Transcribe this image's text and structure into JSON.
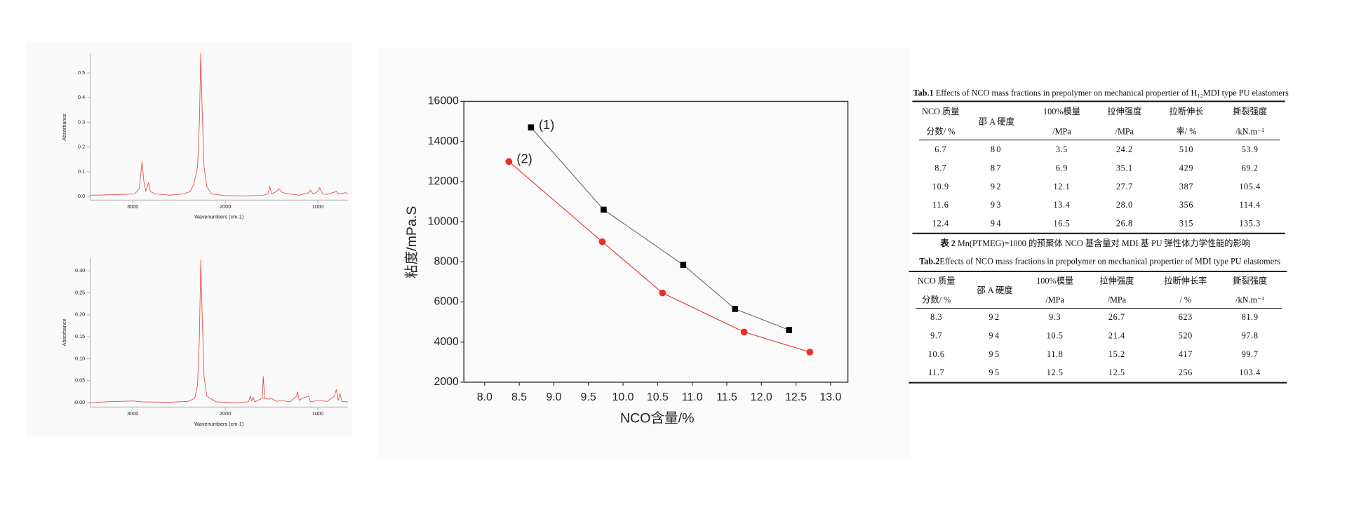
{
  "chart_data": [
    {
      "type": "line",
      "x_label": "Wavenumbers (cm-1)",
      "y_label": "Absorbance",
      "x": [
        3460,
        3300,
        3100,
        2980,
        2930,
        2900,
        2880,
        2860,
        2830,
        2810,
        2760,
        2600,
        2450,
        2380,
        2340,
        2300,
        2280,
        2265,
        2250,
        2230,
        2200,
        2150,
        2000,
        1800,
        1600,
        1540,
        1520,
        1500,
        1450,
        1420,
        1380,
        1300,
        1200,
        1100,
        1080,
        1050,
        1000,
        980,
        950,
        900,
        800,
        780,
        700,
        675
      ],
      "series": [
        {
          "color": "#e8473f",
          "values": [
            0.005,
            0.006,
            0.008,
            0.01,
            0.03,
            0.14,
            0.06,
            0.02,
            0.055,
            0.02,
            0.01,
            0.005,
            0.01,
            0.02,
            0.05,
            0.12,
            0.3,
            0.58,
            0.35,
            0.12,
            0.04,
            0.01,
            0.003,
            0.002,
            0.004,
            0.01,
            0.04,
            0.01,
            0.02,
            0.03,
            0.015,
            0.01,
            0.005,
            0.015,
            0.025,
            0.01,
            0.02,
            0.035,
            0.01,
            0.008,
            0.02,
            0.01,
            0.015,
            0.01
          ]
        }
      ],
      "xlim": [
        3460,
        675
      ],
      "xticks": [
        3000,
        2000,
        1000
      ],
      "ylim": [
        -0.015,
        0.58
      ],
      "yticks": [
        {
          "value": 0,
          "label": "-0.0"
        },
        0.1,
        0.2,
        0.3,
        0.4,
        0.5
      ]
    },
    {
      "type": "line",
      "x_label": "Wavenumbers (cm-1)",
      "y_label": "Absorbance",
      "x": [
        3460,
        3300,
        3000,
        2900,
        2600,
        2400,
        2330,
        2300,
        2280,
        2265,
        2250,
        2230,
        2200,
        2100,
        1900,
        1750,
        1730,
        1715,
        1700,
        1680,
        1600,
        1590,
        1575,
        1530,
        1500,
        1450,
        1400,
        1300,
        1230,
        1220,
        1200,
        1170,
        1100,
        1080,
        1000,
        900,
        820,
        800,
        780,
        760,
        740,
        675
      ],
      "series": [
        {
          "color": "#e8473f",
          "values": [
            0.0,
            0.002,
            0.004,
            0.002,
            0.001,
            0.003,
            0.01,
            0.04,
            0.15,
            0.325,
            0.2,
            0.06,
            0.015,
            0.002,
            0.0,
            0.002,
            0.015,
            0.004,
            0.012,
            0.002,
            0.01,
            0.06,
            0.01,
            0.008,
            0.01,
            0.003,
            0.005,
            0.002,
            0.015,
            0.025,
            0.005,
            0.01,
            0.015,
            0.002,
            0.005,
            0.003,
            0.015,
            0.03,
            0.005,
            0.02,
            0.003,
            0.002
          ]
        }
      ],
      "xlim": [
        3460,
        675
      ],
      "xticks": [
        3000,
        2000,
        1000
      ],
      "ylim": [
        -0.01,
        0.33
      ],
      "yticks": [
        {
          "value": 0,
          "label": "-0.00"
        },
        0.05,
        {
          "value": 0.1,
          "label": "0.10"
        },
        0.15,
        {
          "value": 0.2,
          "label": "0.20"
        },
        0.25,
        {
          "value": 0.3,
          "label": "0.30"
        }
      ]
    },
    {
      "type": "line",
      "x_label": "NCO含量/%",
      "y_label": "粘度/mPa.S",
      "series": [
        {
          "name": "(1)",
          "color": "#000000",
          "line_color": "#666666",
          "marker": "square",
          "x": [
            8.67,
            9.72,
            10.87,
            11.62,
            12.4
          ],
          "values": [
            14700,
            10600,
            7850,
            5650,
            4600
          ]
        },
        {
          "name": "(2)",
          "color": "#e8312a",
          "line_color": "#e8312a",
          "marker": "circle",
          "x": [
            8.35,
            9.7,
            10.57,
            11.75,
            12.7
          ],
          "values": [
            13000,
            9000,
            6450,
            4500,
            3500
          ]
        }
      ],
      "xlim": [
        7.7,
        13.25
      ],
      "xticks": [
        {
          "value": 8,
          "label": "8.0"
        },
        8.5,
        {
          "value": 9,
          "label": "9.0"
        },
        9.5,
        {
          "value": 10,
          "label": "10.0"
        },
        10.5,
        {
          "value": 11,
          "label": "11.0"
        },
        11.5,
        {
          "value": 12,
          "label": "12.0"
        },
        12.5,
        {
          "value": 13,
          "label": "13.0"
        }
      ],
      "ylim": [
        2000,
        16000
      ],
      "yticks": [
        2000,
        4000,
        6000,
        8000,
        10000,
        12000,
        14000,
        16000
      ]
    }
  ],
  "tables": [
    {
      "caption_label": "Tab.1",
      "caption": " Effects of NCO mass fractions in prepolymer on mechanical propertier of H₁₂MDI type PU elastomers",
      "header": [
        [
          "NCO 质量",
          "分数/ %"
        ],
        [
          "邵 A 硬度"
        ],
        [
          "100%模量",
          "/MPa"
        ],
        [
          "拉伸强度",
          "/MPa"
        ],
        [
          "拉断伸长",
          "率/ %"
        ],
        [
          "撕裂强度",
          "/kN.m⁻¹"
        ]
      ],
      "rows": [
        [
          "6.7",
          "80",
          "3.5",
          "24.2",
          "510",
          "53.9"
        ],
        [
          "8.7",
          "87",
          "6.9",
          "35.1",
          "429",
          "69.2"
        ],
        [
          "10.9",
          "92",
          "12.1",
          "27.7",
          "387",
          "105.4"
        ],
        [
          "11.6",
          "93",
          "13.4",
          "28.0",
          "356",
          "114.4"
        ],
        [
          "12.4",
          "94",
          "16.5",
          "26.8",
          "315",
          "135.3"
        ]
      ]
    },
    {
      "title_label": "表 2",
      "title": " Mn(PTMEG)=1000 的预聚体 NCO 基含量对 MDI 基 PU 弹性体力学性能的影响",
      "caption_label": "Tab.2",
      "caption": "Effects of NCO mass fractions in prepolymer on mechanical propertier of MDI type PU elastomers",
      "header": [
        [
          "NCO 质量",
          "分数/ %"
        ],
        [
          "邵 A 硬度"
        ],
        [
          "100%模量",
          "/MPa"
        ],
        [
          "拉伸强度",
          "/MPa"
        ],
        [
          "拉断伸长率",
          "/ %"
        ],
        [
          "撕裂强度",
          "/kN.m⁻¹"
        ]
      ],
      "rows": [
        [
          "8.3",
          "92",
          "9.3",
          "26.7",
          "623",
          "81.9"
        ],
        [
          "9.7",
          "94",
          "10.5",
          "21.4",
          "520",
          "97.8"
        ],
        [
          "10.6",
          "95",
          "11.8",
          "15.2",
          "417",
          "99.7"
        ],
        [
          "11.7",
          "95",
          "12.5",
          "12.5",
          "256",
          "103.4"
        ]
      ]
    }
  ]
}
